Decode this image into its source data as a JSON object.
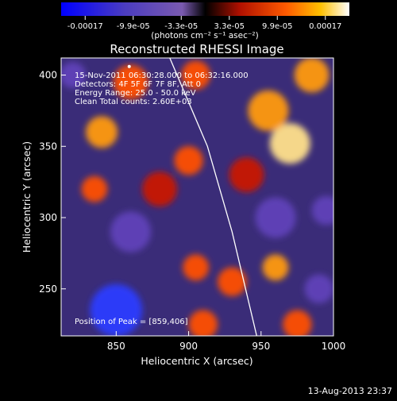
{
  "chart_data": {
    "type": "heatmap",
    "title": "Reconstructed RHESSI Image",
    "xlabel": "Heliocentric X (arcsec)",
    "ylabel": "Heliocentric Y (arcsec)",
    "xlim": [
      812,
      1000
    ],
    "ylim": [
      217,
      412
    ],
    "x_ticks": [
      "850",
      "900",
      "950",
      "1000"
    ],
    "x_tick_values": [
      850,
      900,
      950,
      1000
    ],
    "y_ticks": [
      "250",
      "300",
      "350",
      "400"
    ],
    "y_tick_values": [
      250,
      300,
      350,
      400
    ],
    "colorbar": {
      "ticks": [
        "-0.00017",
        "-9.9e-05",
        "-3.3e-05",
        "3.3e-05",
        "9.9e-05",
        "0.00017"
      ],
      "units": "(photons cm⁻² s⁻¹ asec⁻²)",
      "range": [
        -0.00017,
        0.00017
      ]
    },
    "annotations": [
      "15-Nov-2011 06:30:28.000 to 06:32:16.000",
      "Detectors: 4F 5F 6F 7F 8F, Att 0",
      "Energy Range: 25.0 - 50.0 keV",
      "Clean     Total counts: 2.60E+03"
    ],
    "peak_label": "Position of Peak = [859,406]",
    "peak_position": [
      859,
      406
    ],
    "limb_curve": [
      [
        887,
        412
      ],
      [
        913,
        350
      ],
      [
        930,
        290
      ],
      [
        947,
        217
      ]
    ],
    "blobs": [
      {
        "x": 970,
        "y": 352,
        "value": 1.0,
        "r": 14
      },
      {
        "x": 955,
        "y": 375,
        "value": 0.8,
        "r": 14
      },
      {
        "x": 985,
        "y": 400,
        "value": 0.75,
        "r": 12
      },
      {
        "x": 840,
        "y": 360,
        "value": 0.85,
        "r": 11
      },
      {
        "x": 860,
        "y": 395,
        "value": 0.6,
        "r": 12
      },
      {
        "x": 905,
        "y": 400,
        "value": 0.55,
        "r": 10
      },
      {
        "x": 900,
        "y": 340,
        "value": 0.6,
        "r": 10
      },
      {
        "x": 880,
        "y": 320,
        "value": 0.5,
        "r": 12
      },
      {
        "x": 835,
        "y": 320,
        "value": 0.55,
        "r": 9
      },
      {
        "x": 960,
        "y": 265,
        "value": 0.85,
        "r": 9
      },
      {
        "x": 930,
        "y": 255,
        "value": 0.55,
        "r": 10
      },
      {
        "x": 905,
        "y": 265,
        "value": 0.7,
        "r": 9
      },
      {
        "x": 975,
        "y": 225,
        "value": 0.7,
        "r": 10
      },
      {
        "x": 910,
        "y": 225,
        "value": 0.55,
        "r": 10
      },
      {
        "x": 940,
        "y": 330,
        "value": 0.45,
        "r": 12
      },
      {
        "x": 860,
        "y": 290,
        "value": -0.45,
        "r": 14
      },
      {
        "x": 850,
        "y": 235,
        "value": -0.8,
        "r": 18
      },
      {
        "x": 960,
        "y": 300,
        "value": -0.5,
        "r": 14
      },
      {
        "x": 995,
        "y": 305,
        "value": -0.4,
        "r": 10
      },
      {
        "x": 820,
        "y": 400,
        "value": -0.4,
        "r": 9
      },
      {
        "x": 990,
        "y": 250,
        "value": -0.4,
        "r": 10
      }
    ]
  },
  "footer": {
    "timestamp": "13-Aug-2013 23:37"
  }
}
